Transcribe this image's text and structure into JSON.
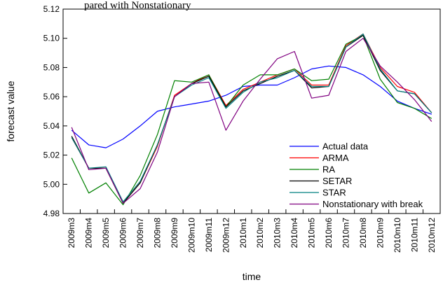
{
  "top_caption": "pared with Nonstationary",
  "chart_data": {
    "type": "line",
    "title": "",
    "xlabel": "time",
    "ylabel": "forecast value",
    "ylim": [
      4.98,
      5.12
    ],
    "yticks": [
      "4.98",
      "5.00",
      "5.02",
      "5.04",
      "5.06",
      "5.08",
      "5.10",
      "5.12"
    ],
    "grid": false,
    "legend_position": "bottom-right",
    "categories": [
      "2009m3",
      "2009m4",
      "2009m5",
      "2009m6",
      "2009m7",
      "2009m8",
      "2009m9",
      "2009m10",
      "2009m11",
      "2009m12",
      "2010m1",
      "2010m2",
      "2010m3",
      "2010m4",
      "2010m5",
      "2010m6",
      "2010m7",
      "2010m8",
      "2010m9",
      "2010m10",
      "2010m11",
      "2010m12"
    ],
    "series": [
      {
        "name": "Actual data",
        "color": "#0000ff",
        "values": [
          5.037,
          5.027,
          5.025,
          5.031,
          5.04,
          5.05,
          5.053,
          5.055,
          5.057,
          5.061,
          5.067,
          5.068,
          5.068,
          5.073,
          5.079,
          5.081,
          5.08,
          5.075,
          5.067,
          5.057,
          5.052,
          5.048
        ]
      },
      {
        "name": "ARMA",
        "color": "#ff0000",
        "values": [
          5.032,
          5.011,
          5.011,
          4.987,
          5.001,
          5.026,
          5.061,
          5.069,
          5.075,
          5.054,
          5.065,
          5.07,
          5.075,
          5.079,
          5.068,
          5.068,
          5.095,
          5.103,
          5.08,
          5.067,
          5.063,
          5.049
        ]
      },
      {
        "name": "RA",
        "color": "#008000",
        "values": [
          5.018,
          4.994,
          5.001,
          4.986,
          5.006,
          5.034,
          5.071,
          5.07,
          5.075,
          5.053,
          5.068,
          5.075,
          5.075,
          5.079,
          5.071,
          5.072,
          5.096,
          5.102,
          5.072,
          5.056,
          5.052,
          5.045
        ]
      },
      {
        "name": "SETAR",
        "color": "#000000",
        "values": [
          5.033,
          5.011,
          5.011,
          4.987,
          5.001,
          5.027,
          5.06,
          5.069,
          5.074,
          5.053,
          5.064,
          5.069,
          5.074,
          5.078,
          5.066,
          5.067,
          5.094,
          5.102,
          5.078,
          5.064,
          5.062,
          5.049
        ]
      },
      {
        "name": "STAR",
        "color": "#008080",
        "values": [
          5.032,
          5.011,
          5.012,
          4.988,
          5.002,
          5.027,
          5.06,
          5.068,
          5.073,
          5.052,
          5.063,
          5.07,
          5.073,
          5.078,
          5.067,
          5.067,
          5.094,
          5.103,
          5.079,
          5.064,
          5.062,
          5.049
        ]
      },
      {
        "name": "Nonstationary with break",
        "color": "#800080",
        "values": [
          5.039,
          5.01,
          5.011,
          4.987,
          4.997,
          5.022,
          5.06,
          5.069,
          5.07,
          5.037,
          5.057,
          5.072,
          5.086,
          5.091,
          5.059,
          5.061,
          5.091,
          5.1,
          5.081,
          5.07,
          5.058,
          5.043
        ]
      }
    ]
  }
}
